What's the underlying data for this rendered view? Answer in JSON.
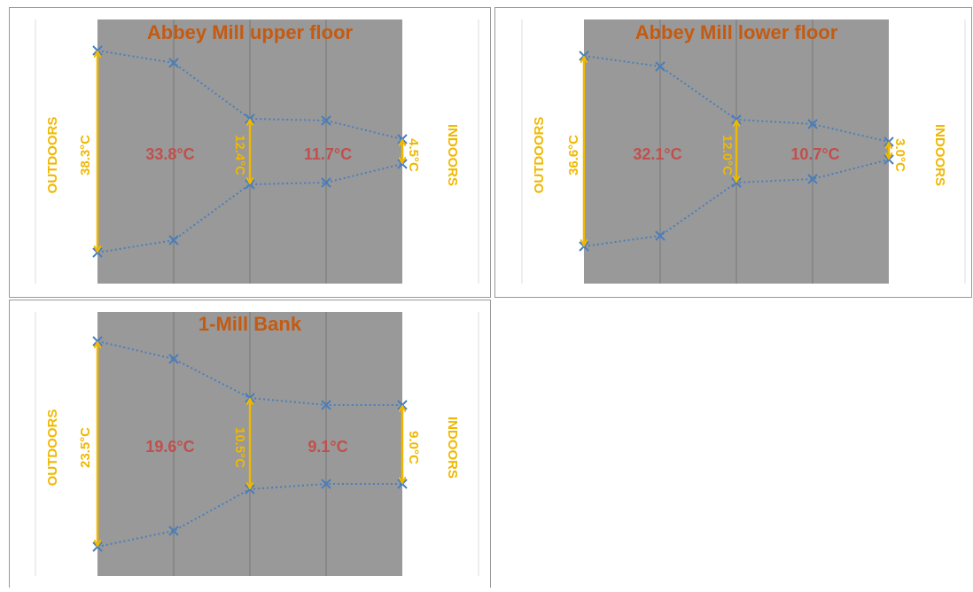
{
  "panels": [
    {
      "title": "Abbey Mill upper floor",
      "left_label": "OUTDOORS",
      "right_label": "INDOORS",
      "outdoor_range": "38.3°C",
      "zone1": "33.8°C",
      "mid_range": "12.4°C",
      "zone2": "11.7°C",
      "indoor_range": "4.5°C"
    },
    {
      "title": "Abbey Mill lower floor",
      "left_label": "OUTDOORS",
      "right_label": "INDOORS",
      "outdoor_range": "36.6°C",
      "zone1": "32.1°C",
      "mid_range": "12.0°C",
      "zone2": "10.7°C",
      "indoor_range": "3.0°C"
    },
    {
      "title": "1-Mill Bank",
      "left_label": "OUTDOORS",
      "right_label": "INDOORS",
      "outdoor_range": "23.5°C",
      "zone1": "19.6°C",
      "mid_range": "10.5°C",
      "zone2": "9.1°C",
      "indoor_range": "9.0°C"
    }
  ]
}
